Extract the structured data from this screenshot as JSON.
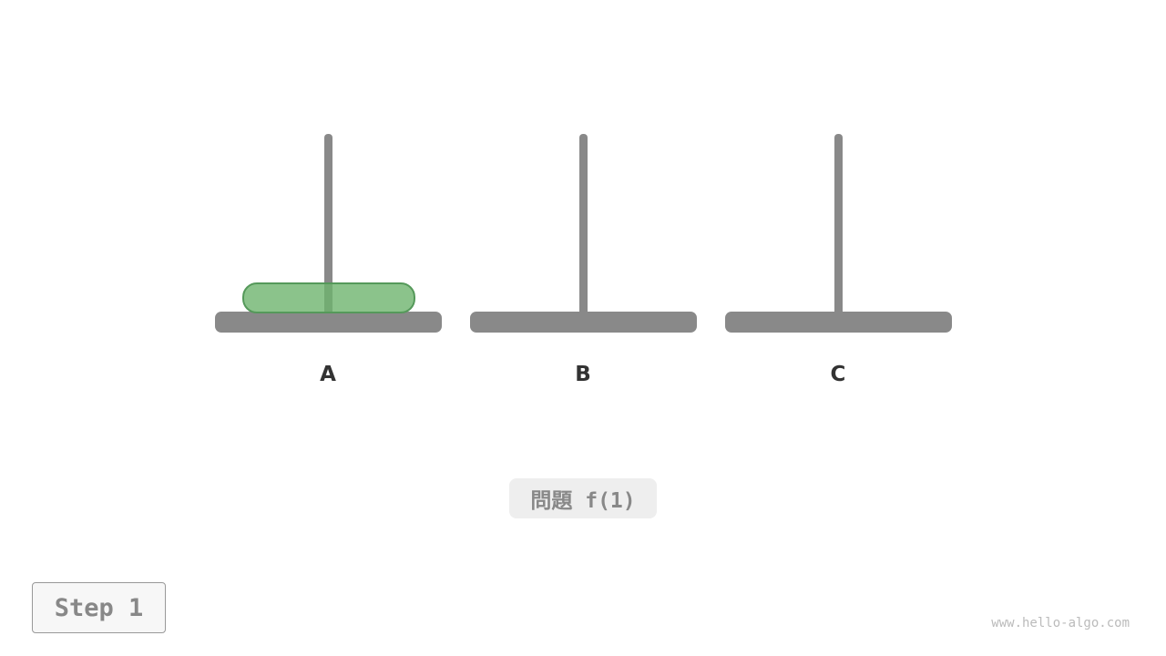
{
  "pegs": [
    {
      "label": "A"
    },
    {
      "label": "B"
    },
    {
      "label": "C"
    }
  ],
  "disks": [
    {
      "peg": "A",
      "size": 1,
      "color": "#6eb46e"
    }
  ],
  "caption": "問題 f(1)",
  "step_label": "Step 1",
  "watermark": "www.hello-algo.com"
}
